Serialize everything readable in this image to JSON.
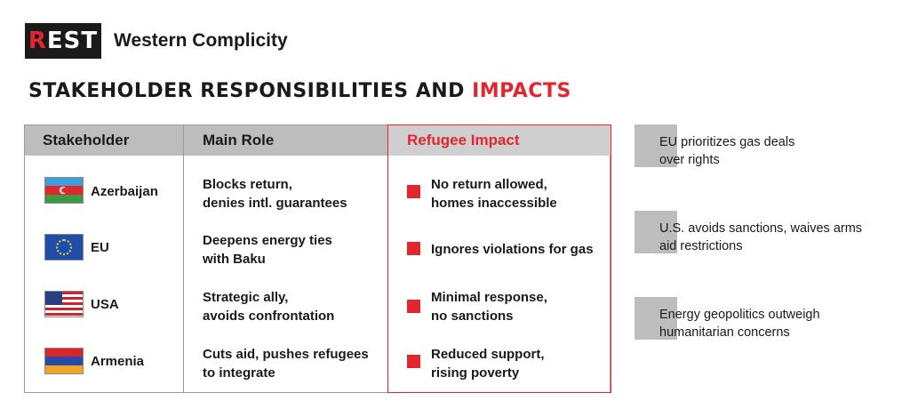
{
  "brand": {
    "logo": "REST",
    "title": "Western Complicity"
  },
  "heading": {
    "main": "STAKEHOLDER RESPONSIBILITIES AND ",
    "accent": "IMPACTS"
  },
  "table": {
    "headers": [
      "Stakeholder",
      "Main Role",
      "Refugee Impact"
    ],
    "rows": [
      {
        "stakeholder": "Azerbaijan",
        "flag": "azerbaijan-flag",
        "role": [
          "Blocks return,",
          "denies intl. guarantees"
        ],
        "impact": [
          "No return allowed,",
          "homes inaccessible"
        ]
      },
      {
        "stakeholder": "EU",
        "flag": "eu-flag",
        "role": [
          "Deepens energy ties",
          "with Baku"
        ],
        "impact": [
          "Ignores violations for gas"
        ]
      },
      {
        "stakeholder": "USA",
        "flag": "usa-flag",
        "role": [
          "Strategic ally,",
          "avoids confrontation"
        ],
        "impact": [
          "Minimal response,",
          "no sanctions"
        ]
      },
      {
        "stakeholder": "Armenia",
        "flag": "armenia-flag",
        "role": [
          "Cuts aid, pushes refugees",
          "to integrate"
        ],
        "impact": [
          "Reduced support,",
          "rising poverty"
        ]
      }
    ]
  },
  "notes": [
    [
      "EU prioritizes gas deals",
      "over rights"
    ],
    [
      "U.S. avoids sanctions, waives arms",
      "aid restrictions"
    ],
    [
      "Energy geopolitics outweigh",
      "humanitarian concerns"
    ]
  ],
  "colors": {
    "accent": "#e3262e",
    "header_gray": "#bdbdbd",
    "text": "#1a1a1a"
  }
}
